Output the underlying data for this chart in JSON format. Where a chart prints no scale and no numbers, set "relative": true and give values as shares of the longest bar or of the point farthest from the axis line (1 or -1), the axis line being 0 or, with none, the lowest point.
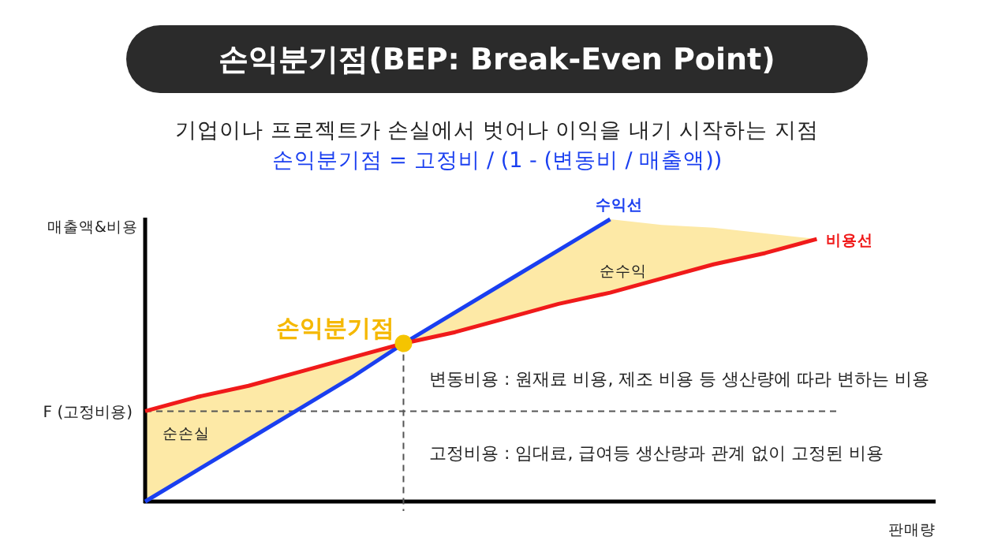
{
  "chart_data": {
    "type": "line",
    "relative": true,
    "title": "손익분기점(BEP: Break-Even Point)",
    "subtitle": "기업이나 프로젝트가 손실에서 벗어나 이익을 내기 시작하는 지점",
    "xlabel": "판매량",
    "ylabel": "매출액&비용",
    "annotations": [
      "손익분기점 = 고정비 / (1 - (변동비 / 매출액))",
      "순수익",
      "순손실",
      "변동비용 : 원재료 비용, 제조 비용 등 생산량에 따라 변하는 비용",
      "고정비용 : 임대료, 급여등 생산량과 관계 없이 고정된 비용",
      "손익분기점"
    ],
    "categories": [
      null,
      null,
      null,
      null,
      null,
      null,
      null,
      null,
      null,
      null,
      null,
      null,
      null,
      null,
      null,
      null
    ],
    "series": [
      {
        "name": "수익선",
        "color": "#1a3ff0",
        "values": [
          0,
          0.11,
          0.22,
          0.33,
          0.44,
          0.56,
          0.67,
          0.78,
          0.89,
          1,
          null,
          null,
          null,
          null,
          null,
          null
        ]
      },
      {
        "name": "비용선",
        "color": "#f01a1a",
        "values": [
          0.32,
          0.37,
          0.41,
          0.46,
          0.51,
          0.56,
          0.6,
          0.65,
          0.7,
          0.74,
          0.79,
          0.84,
          0.88,
          0.93,
          null,
          null
        ],
        "lower": [
          0,
          0.11,
          0.22,
          0.33,
          0.44,
          0.56,
          0.6,
          0.65,
          0.7,
          0.74,
          0.79,
          0.84,
          0.88,
          0.93,
          null,
          null
        ],
        "upper": [
          0.32,
          0.37,
          0.41,
          0.46,
          0.51,
          0.56,
          0.67,
          0.78,
          0.89,
          1,
          0.98,
          0.97,
          0.95,
          0.93,
          null,
          null
        ]
      }
    ],
    "ref_lines": [
      {
        "axis": "y",
        "value": 0.32,
        "label": "F (고정비용)",
        "line_style": "dashed",
        "color": "#555555"
      }
    ],
    "legend": false
  }
}
